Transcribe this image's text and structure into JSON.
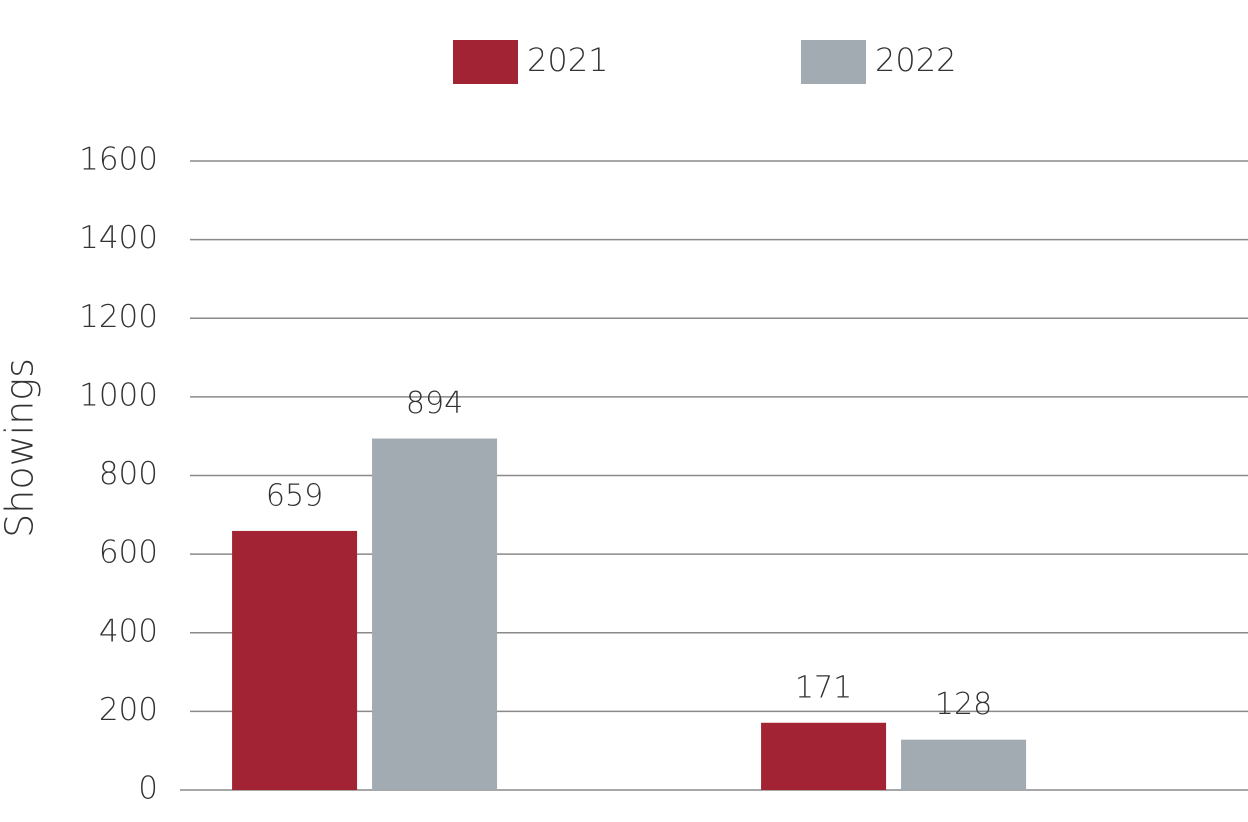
{
  "chart_data": {
    "type": "bar",
    "y_label": "Showings",
    "categories": [
      null,
      null
    ],
    "series": [
      {
        "name": "2021",
        "color": "#a12334",
        "values": [
          659,
          171
        ]
      },
      {
        "name": "2022",
        "color": "#a2abb1",
        "values": [
          894,
          128
        ]
      }
    ],
    "ylim": [
      0,
      1600
    ],
    "yticks": [
      0,
      200,
      400,
      600,
      800,
      1000,
      1200,
      1400,
      1600
    ],
    "grid": true,
    "legend": "top"
  }
}
